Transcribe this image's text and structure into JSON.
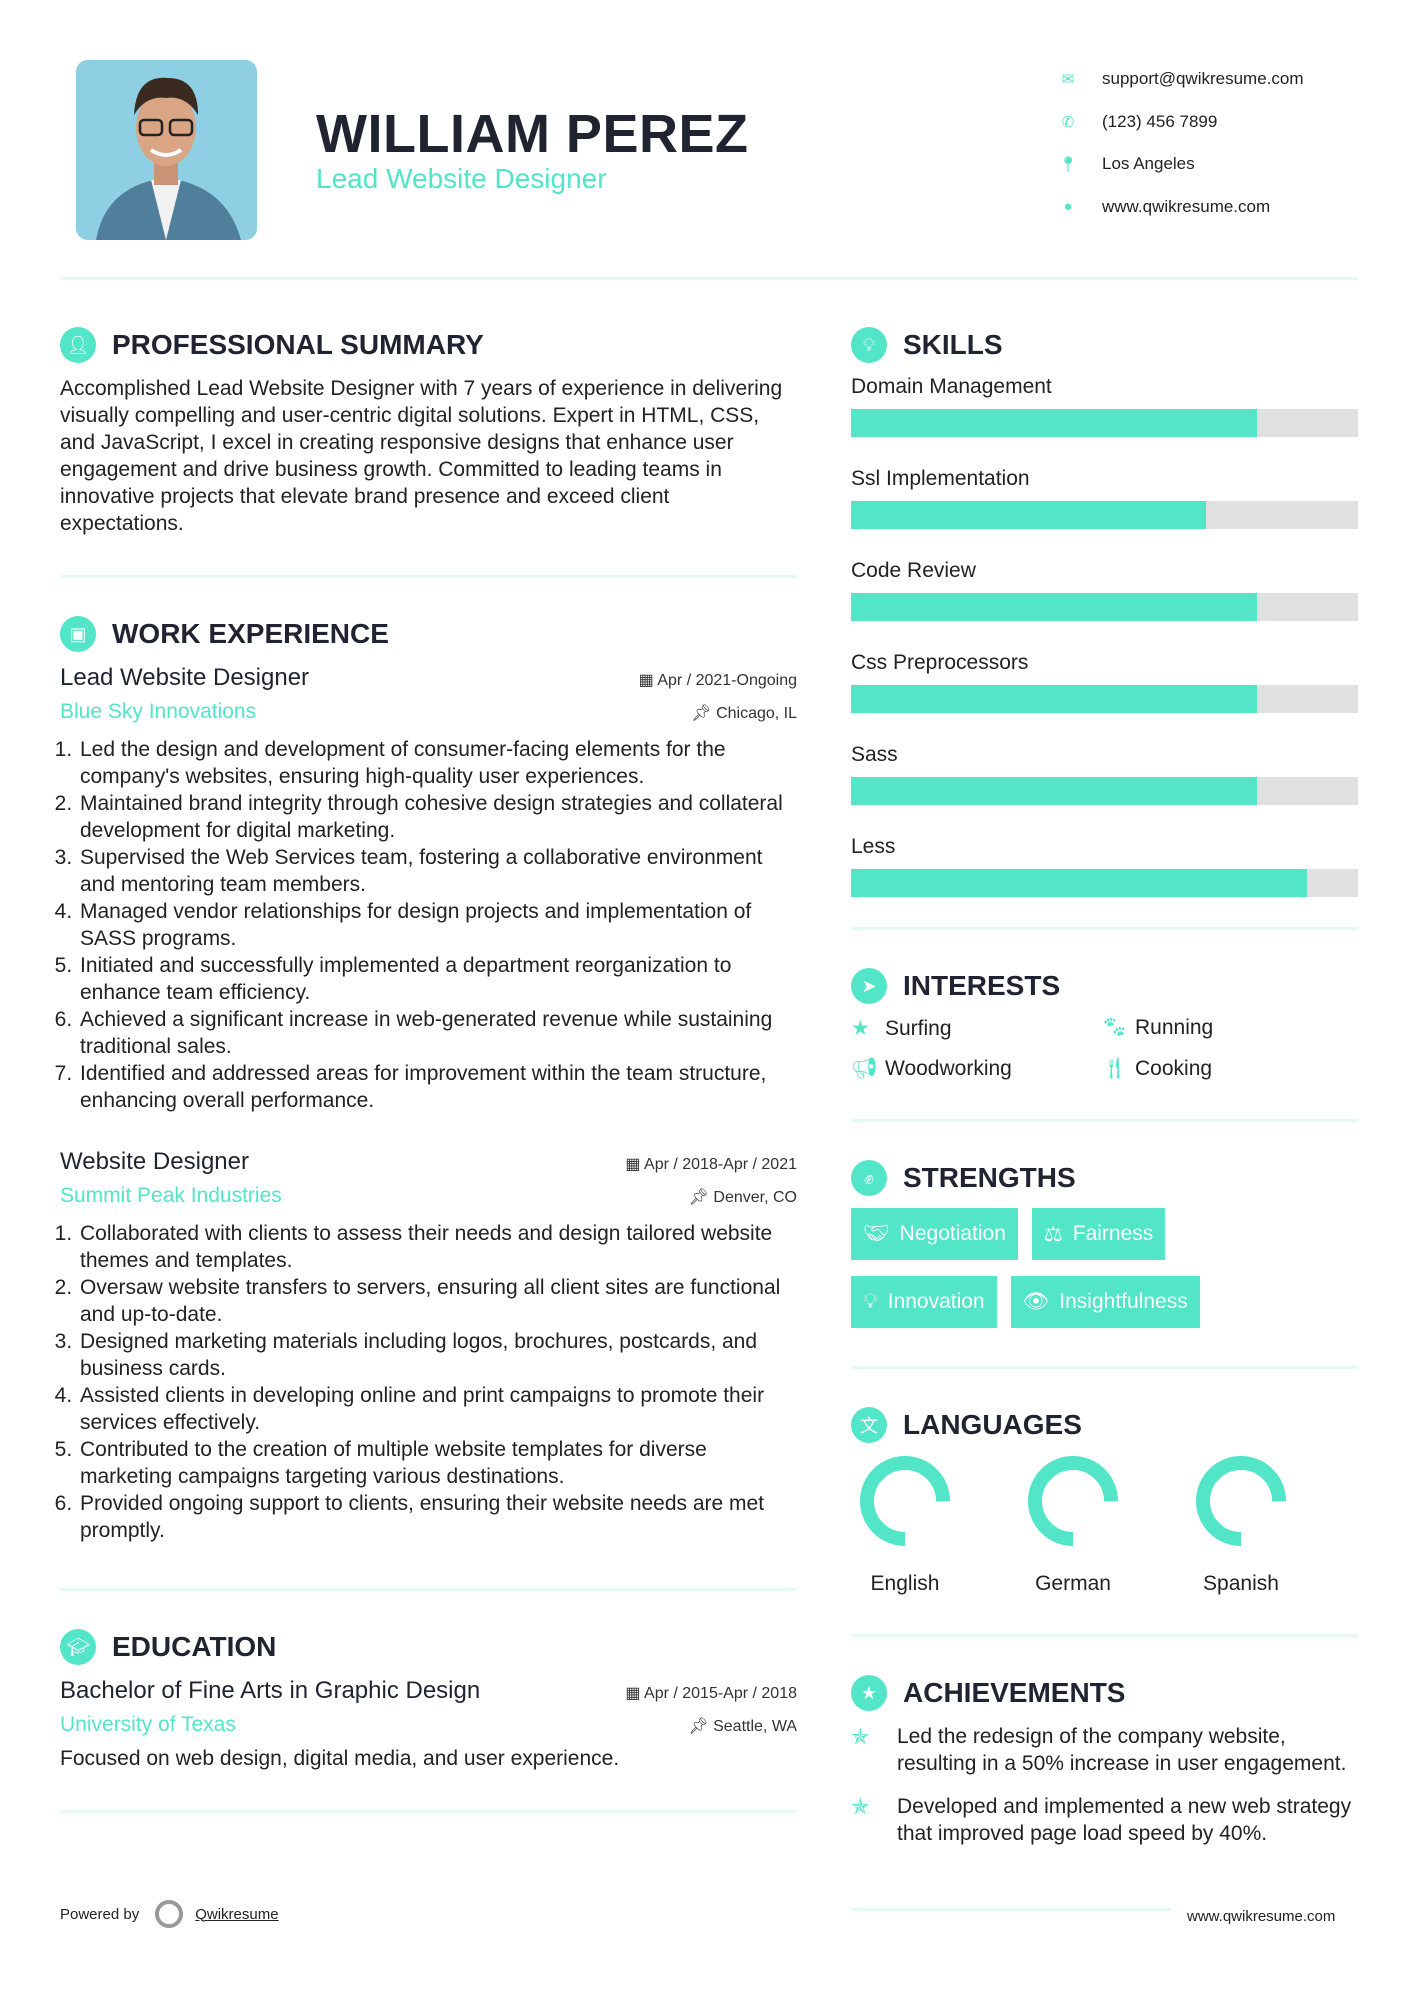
{
  "header": {
    "name": "WILLIAM PEREZ",
    "title": "Lead Website Designer",
    "contacts": [
      {
        "icon": "envelope-icon",
        "text": "support@qwikresume.com"
      },
      {
        "icon": "phone-icon",
        "text": "(123) 456 7899"
      },
      {
        "icon": "map-pin-icon",
        "text": "Los Angeles"
      },
      {
        "icon": "globe-icon",
        "text": "www.qwikresume.com"
      }
    ]
  },
  "summary": {
    "heading": "PROFESSIONAL SUMMARY",
    "text": "Accomplished Lead Website Designer with 7 years of experience in delivering visually compelling and user-centric digital solutions. Expert in HTML, CSS, and JavaScript, I excel in creating responsive designs that enhance user engagement and drive business growth. Committed to leading teams in innovative projects that elevate brand presence and exceed client expectations."
  },
  "work": {
    "heading": "WORK EXPERIENCE",
    "jobs": [
      {
        "title": "Lead Website Designer",
        "company": "Blue Sky Innovations",
        "date": "Apr / 2021-Ongoing",
        "location": "Chicago, IL",
        "items": [
          "Led the design and development of consumer-facing elements for the company's websites, ensuring high-quality user experiences.",
          "Maintained brand integrity through cohesive design strategies and collateral development for digital marketing.",
          "Supervised the Web Services team, fostering a collaborative environment and mentoring team members.",
          "Managed vendor relationships for design projects and implementation of SASS programs.",
          "Initiated and successfully implemented a department reorganization to enhance team efficiency.",
          "Achieved a significant increase in web-generated revenue while sustaining traditional sales.",
          "Identified and addressed areas for improvement within the team structure, enhancing overall performance."
        ]
      },
      {
        "title": "Website Designer",
        "company": "Summit Peak Industries",
        "date": "Apr / 2018-Apr / 2021",
        "location": "Denver, CO",
        "items": [
          "Collaborated with clients to assess their needs and design tailored website themes and templates.",
          "Oversaw website transfers to servers, ensuring all client sites are functional and up-to-date.",
          "Designed marketing materials including logos, brochures, postcards, and business cards.",
          "Assisted clients in developing online and print campaigns to promote their services effectively.",
          "Contributed to the creation of multiple website templates for diverse marketing campaigns targeting various destinations.",
          "Provided ongoing support to clients, ensuring their website needs are met promptly."
        ]
      }
    ]
  },
  "education": {
    "heading": "EDUCATION",
    "degree": "Bachelor of Fine Arts in Graphic Design",
    "school": "University of Texas",
    "date": "Apr / 2015-Apr / 2018",
    "location": "Seattle, WA",
    "text": "Focused on web design, digital media, and user experience."
  },
  "skills": {
    "heading": "SKILLS",
    "items": [
      {
        "name": "Domain Management",
        "percent": 80
      },
      {
        "name": "Ssl Implementation",
        "percent": 70
      },
      {
        "name": "Code Review",
        "percent": 80
      },
      {
        "name": "Css Preprocessors",
        "percent": 80
      },
      {
        "name": "Sass",
        "percent": 80
      },
      {
        "name": "Less",
        "percent": 90
      }
    ]
  },
  "interests": {
    "heading": "INTERESTS",
    "items": [
      {
        "icon": "star-icon",
        "label": "Surfing"
      },
      {
        "icon": "paw-icon",
        "label": "Running"
      },
      {
        "icon": "bullhorn-icon",
        "label": "Woodworking"
      },
      {
        "icon": "utensils-icon",
        "label": "Cooking"
      }
    ]
  },
  "strengths": {
    "heading": "STRENGTHS",
    "items": [
      {
        "icon": "handshake-icon",
        "label": "Negotiation"
      },
      {
        "icon": "scale-icon",
        "label": "Fairness"
      },
      {
        "icon": "lightbulb-icon",
        "label": "Innovation"
      },
      {
        "icon": "eye-icon",
        "label": "Insightfulness"
      }
    ]
  },
  "languages": {
    "heading": "LANGUAGES",
    "items": [
      {
        "name": "English",
        "percent": 75
      },
      {
        "name": "German",
        "percent": 75
      },
      {
        "name": "Spanish",
        "percent": 75
      }
    ]
  },
  "achievements": {
    "heading": "ACHIEVEMENTS",
    "items": [
      "Led the redesign of the company website, resulting in a 50% increase in user engagement.",
      "Developed and implemented a new web strategy that improved page load speed by 40%."
    ]
  },
  "footer": {
    "powered_by": "Powered by",
    "brand": "Qwikresume",
    "site": "www.qwikresume.com"
  },
  "colors": {
    "accent": "#52e5c7",
    "text": "#1f2430",
    "track": "#e0e0e0"
  }
}
